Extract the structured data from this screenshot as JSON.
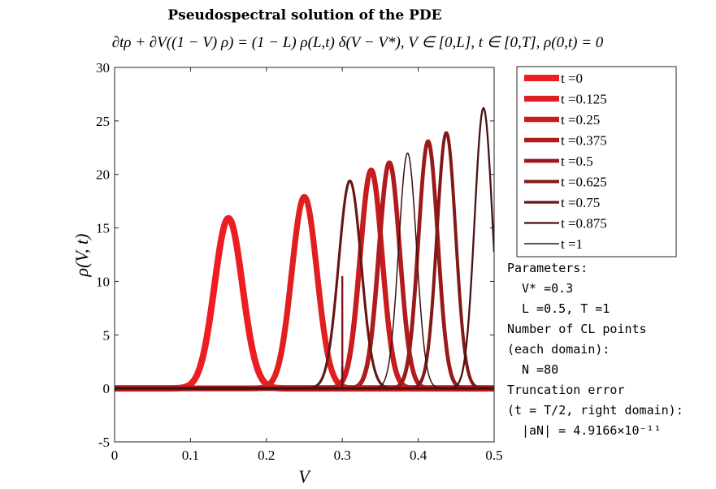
{
  "chart_data": {
    "type": "line",
    "title": "Pseudospectral solution of the PDE",
    "subtitle": "∂tρ + ∂V((1 − V) ρ) = (1 − L) ρ(L,t) δ(V − V*),  V ∈ [0,L],  t ∈ [0,T],  ρ(0,t) = 0",
    "xlabel": "V",
    "ylabel": "ρ(V, t)",
    "xlim": [
      0,
      0.5
    ],
    "ylim": [
      -5,
      30
    ],
    "xticks": [
      0,
      0.1,
      0.2,
      0.3,
      0.4,
      0.5
    ],
    "yticks": [
      -5,
      0,
      5,
      10,
      15,
      20,
      25,
      30
    ],
    "grid": false,
    "legend_position": "right",
    "series": [
      {
        "name": "t =0",
        "color": "#ee1d23",
        "peak_center": 0.15,
        "peak_height": 15.9,
        "width": 0.026
      },
      {
        "name": "t =0.125",
        "color": "#e01f21",
        "peak_center": 0.25,
        "peak_height": 17.9,
        "width": 0.0235
      },
      {
        "name": "t =0.25",
        "color": "#c81c1e",
        "peak_center": 0.338,
        "peak_height": 20.4,
        "width": 0.0205,
        "boundary_value": 0
      },
      {
        "name": "t =0.375",
        "color": "#b01c1e",
        "peak_center": 0.362,
        "peak_height": 21.1,
        "width": 0.0195,
        "boundary_value": 0.5
      },
      {
        "name": "t =0.5",
        "color": "#9a1a1a",
        "peak_center": 0.413,
        "peak_height": 23.1,
        "width": 0.018,
        "boundary_value": 2
      },
      {
        "name": "t =0.625",
        "color": "#821818",
        "peak_center": 0.437,
        "peak_height": 23.9,
        "width": 0.0175,
        "boundary_value": 10.5
      },
      {
        "name": "t =0.75",
        "color": "#661515",
        "peak_center": 0.31,
        "peak_height": 19.4,
        "width": 0.021,
        "boundary_value": 2.6
      },
      {
        "name": "t =0.875",
        "color": "#4c1212",
        "peak_center": 0.486,
        "peak_height": 26.2,
        "width": 0.0165
      },
      {
        "name": "t =1",
        "color": "#3a1010",
        "peak_center": 0.386,
        "peak_height": 22.0,
        "width": 0.0165
      }
    ]
  },
  "annotations": {
    "parameters_heading": "Parameters:",
    "v_star": "V* =0.3",
    "l_t": "L =0.5, T =1",
    "cl_points_heading": "Number of CL points",
    "cl_points_sub": "(each domain):",
    "n_value": "N =80",
    "truncation_heading": "Truncation error",
    "truncation_sub": "(t = T/2, right domain):",
    "truncation_value": "|aN| = 4.9166×10⁻¹¹"
  }
}
